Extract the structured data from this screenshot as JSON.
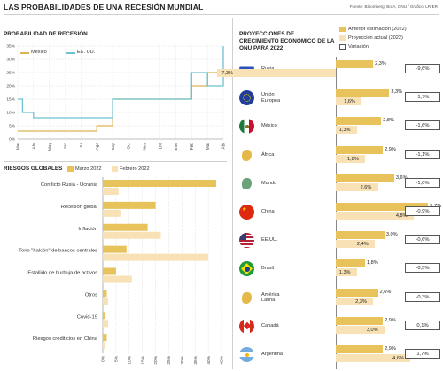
{
  "title": "LAS PROBABILIDADES DE UNA RECESIÓN MUNDIAL",
  "source": "Fuente: Bloomberg, BofA, ONU / Gráfico: LR-ER",
  "colors": {
    "dark": "#e8c25a",
    "light": "#f8e2b5",
    "us_line": "#6cc3d1",
    "mexico_line": "#d9b452"
  },
  "chart_data": [
    {
      "type": "line",
      "title": "PROBABILIDAD DE RECESIÓN",
      "x": [
        "Mar",
        "Abr",
        "May",
        "Jun",
        "Jul",
        "Ago",
        "Sep",
        "Oct",
        "Nov",
        "Dic",
        "Ene",
        "Feb",
        "Mar",
        "Abr"
      ],
      "ylim": [
        0,
        35
      ],
      "yticks": [
        "0%",
        "5%",
        "10%",
        "15%",
        "20%",
        "25%",
        "30%",
        "35%"
      ],
      "series": [
        {
          "name": "México",
          "points": [
            [
              0,
              3
            ],
            [
              5,
              3
            ],
            [
              5,
              5
            ],
            [
              6,
              5
            ],
            [
              6,
              15
            ],
            [
              11,
              15
            ],
            [
              11,
              20
            ],
            [
              12,
              20
            ],
            [
              12,
              25
            ],
            [
              13,
              25
            ]
          ]
        },
        {
          "name": "EE. UU.",
          "points": [
            [
              0,
              15
            ],
            [
              0.3,
              15
            ],
            [
              0.3,
              10
            ],
            [
              1,
              10
            ],
            [
              1,
              8
            ],
            [
              6,
              8
            ],
            [
              6,
              15
            ],
            [
              11,
              15
            ],
            [
              11,
              25
            ],
            [
              12,
              25
            ],
            [
              12,
              20
            ],
            [
              13,
              20
            ],
            [
              13,
              35
            ]
          ]
        }
      ]
    },
    {
      "type": "bar",
      "title": "RIESGOS GLOBALES",
      "categories": [
        "Conflicto Rusia - Ucrania",
        "Recesión global",
        "Inflación",
        "Tono \"halcón\" de bancos centrales",
        "Estallido de burbuja de activos",
        "Otros",
        "Covid-19",
        "Riesgos crediticios en China"
      ],
      "xlim": [
        0,
        45
      ],
      "xticks": [
        "0%",
        "5%",
        "10%",
        "15%",
        "20%",
        "25%",
        "30%",
        "35%",
        "40%",
        "45%"
      ],
      "series": [
        {
          "name": "Marzo 2022",
          "values": [
            43,
            20,
            17,
            9,
            5,
            1.5,
            1,
            1.5
          ]
        },
        {
          "name": "Febrero 2022",
          "values": [
            6,
            7,
            22,
            40,
            11,
            2,
            2,
            1
          ]
        }
      ]
    },
    {
      "type": "bar",
      "title": "PROYECCIONES DE CRECIMIENTO ECONÓMICO DE LA ONU PARA 2022",
      "legend": [
        "Anterior estimación (2022)",
        "Proyección actual (2022)",
        "Variación"
      ],
      "rows": [
        {
          "name": "Rusia",
          "anterior": 2.3,
          "actual": -7.3,
          "anterior_label": "2,3%",
          "actual_label": "-7,3%",
          "variation": "-9,6%"
        },
        {
          "name": "Unión Europea",
          "anterior": 3.3,
          "actual": 1.6,
          "anterior_label": "3,3%",
          "actual_label": "1,6%",
          "variation": "-1,7%"
        },
        {
          "name": "México",
          "anterior": 2.8,
          "actual": 1.3,
          "anterior_label": "2,8%",
          "actual_label": "1,3%",
          "variation": "-1,6%"
        },
        {
          "name": "África",
          "anterior": 2.9,
          "actual": 1.8,
          "anterior_label": "2,9%",
          "actual_label": "1,8%",
          "variation": "-1,1%"
        },
        {
          "name": "Mundo",
          "anterior": 3.6,
          "actual": 2.6,
          "anterior_label": "3,6%",
          "actual_label": "2,6%",
          "variation": "-1,0%"
        },
        {
          "name": "China",
          "anterior": 5.7,
          "actual": 4.8,
          "anterior_label": "5,7%",
          "actual_label": "4,8%",
          "variation": "-0,9%"
        },
        {
          "name": "EE.UU.",
          "anterior": 3.0,
          "actual": 2.4,
          "anterior_label": "3,0%",
          "actual_label": "2,4%",
          "variation": "-0,6%"
        },
        {
          "name": "Brasil",
          "anterior": 1.8,
          "actual": 1.3,
          "anterior_label": "1,8%",
          "actual_label": "1,3%",
          "variation": "-0,5%"
        },
        {
          "name": "América Latina",
          "anterior": 2.6,
          "actual": 2.3,
          "anterior_label": "2,6%",
          "actual_label": "2,3%",
          "variation": "-0,3%"
        },
        {
          "name": "Canadá",
          "anterior": 2.9,
          "actual": 3.0,
          "anterior_label": "2,9%",
          "actual_label": "3,0%",
          "variation": "0,1%"
        },
        {
          "name": "Argentina",
          "anterior": 2.9,
          "actual": 4.6,
          "anterior_label": "2,9%",
          "actual_label": "4,6%",
          "variation": "1,7%"
        }
      ]
    }
  ]
}
